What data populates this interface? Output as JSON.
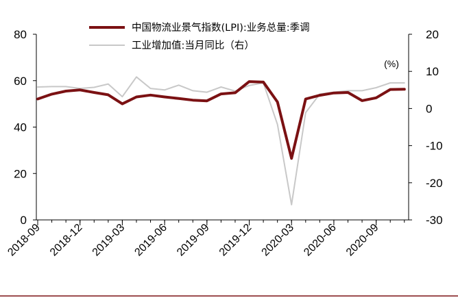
{
  "chart_data": {
    "type": "line",
    "x": [
      "2018-09",
      "2018-10",
      "2018-11",
      "2018-12",
      "2019-01",
      "2019-02",
      "2019-03",
      "2019-04",
      "2019-05",
      "2019-06",
      "2019-07",
      "2019-08",
      "2019-09",
      "2019-10",
      "2019-11",
      "2019-12",
      "2020-01",
      "2020-02",
      "2020-03",
      "2020-04",
      "2020-05",
      "2020-06",
      "2020-07",
      "2020-08",
      "2020-09",
      "2020-10",
      "2020-11"
    ],
    "xticks": [
      "2018-09",
      "2018-12",
      "2019-03",
      "2019-06",
      "2019-09",
      "2019-12",
      "2020-03",
      "2020-06",
      "2020-09"
    ],
    "series": [
      {
        "name": "中国物流业景气指数(LPI):业务总量:季调",
        "axis": "left",
        "color": "#7b1113",
        "values": [
          52.1,
          54.2,
          55.5,
          56.0,
          54.9,
          53.9,
          50.0,
          53.0,
          53.8,
          53.0,
          52.3,
          51.6,
          51.3,
          54.3,
          54.8,
          59.6,
          59.4,
          50.8,
          26.5,
          52.1,
          53.7,
          54.7,
          54.9,
          51.4,
          52.6,
          56.2,
          56.3
        ]
      },
      {
        "name": "工业增加值:当月同比（右）",
        "axis": "right",
        "color": "#c8c8c8",
        "values": [
          5.8,
          5.9,
          5.9,
          5.4,
          5.7,
          6.6,
          3.2,
          8.5,
          5.4,
          5.0,
          6.3,
          4.8,
          4.4,
          5.8,
          4.7,
          6.2,
          6.9,
          -4.3,
          -25.9,
          -1.1,
          3.9,
          4.4,
          4.8,
          4.8,
          5.6,
          6.9,
          6.9
        ]
      }
    ],
    "y_left": {
      "ylim": [
        0,
        80
      ],
      "ticks": [
        0,
        20,
        40,
        60,
        80
      ]
    },
    "y_right": {
      "ylim": [
        -30,
        20
      ],
      "ticks": [
        -30,
        -20,
        -10,
        0,
        10,
        20
      ],
      "unit_label": "(%)"
    },
    "legend_placement": "top-center",
    "grid": false
  }
}
